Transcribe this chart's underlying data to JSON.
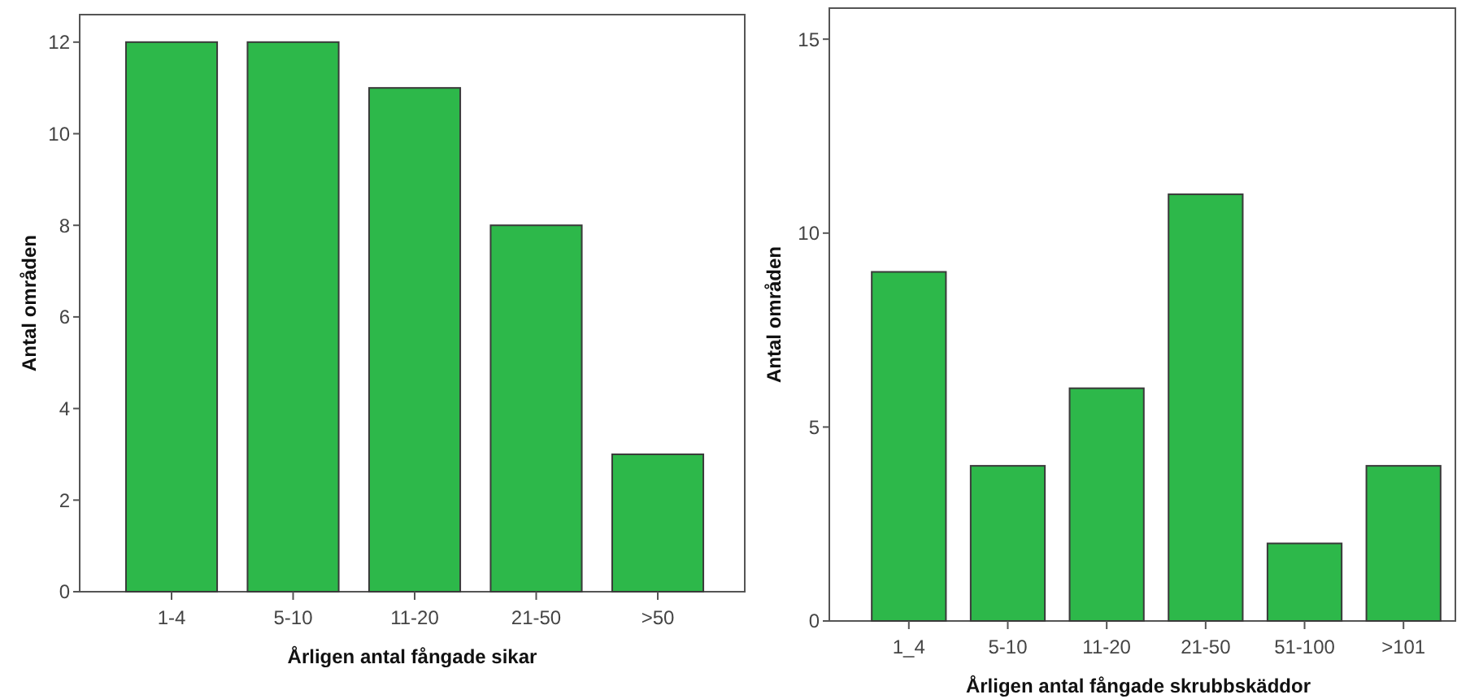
{
  "chart_data": [
    {
      "type": "bar",
      "xlabel": "Årligen antal fångade sikar",
      "ylabel": "Antal områden",
      "categories": [
        "1-4",
        "5-10",
        "11-20",
        "21-50",
        ">50"
      ],
      "values": [
        12,
        12,
        11,
        8,
        3
      ],
      "color": "#2db84a",
      "ylim": [
        0,
        12.6
      ],
      "yticks": [
        0,
        2,
        4,
        6,
        8,
        10,
        12
      ],
      "grid": false
    },
    {
      "type": "bar",
      "xlabel": "Årligen antal fångade skrubbskäddor",
      "ylabel": "Antal områden",
      "categories": [
        "1_4",
        "5-10",
        "11-20",
        "21-50",
        "51-100",
        ">101"
      ],
      "values": [
        9,
        4,
        6,
        11,
        2,
        4
      ],
      "color": "#2db84a",
      "ylim": [
        0,
        15.8
      ],
      "yticks": [
        0,
        5,
        10,
        15
      ],
      "grid": false
    }
  ]
}
